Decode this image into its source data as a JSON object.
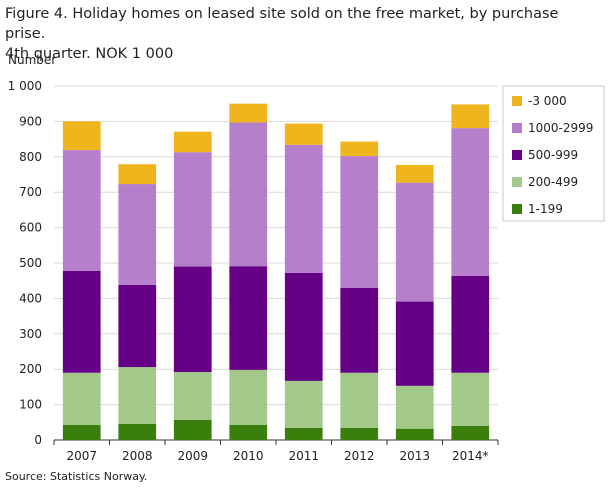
{
  "title_line1": "Figure 4. Holiday homes on leased site sold on the free market, by purchase prise.",
  "title_line2": "4th quarter. NOK 1 000",
  "source": "Source: Statistics Norway.",
  "chart_data": {
    "type": "bar",
    "stacked": true,
    "title": "Figure 4. Holiday homes on leased site sold on the free market, by purchase prise. 4th quarter. NOK 1 000",
    "xlabel": "",
    "ylabel": "Number",
    "ylim": [
      0,
      1000
    ],
    "yticks": [
      0,
      100,
      200,
      300,
      400,
      500,
      600,
      700,
      800,
      900,
      1000
    ],
    "ytick_labels": [
      "0",
      "100",
      "200",
      "300",
      "400",
      "500",
      "600",
      "700",
      "800",
      "900",
      "1 000"
    ],
    "grid": true,
    "legend_position": "top-right",
    "categories": [
      "2007",
      "2008",
      "2009",
      "2010",
      "2011",
      "2012",
      "2013",
      "2014*"
    ],
    "series": [
      {
        "name": "1-199",
        "color": "#3a7f0c",
        "values": [
          43,
          46,
          57,
          43,
          34,
          34,
          32,
          40
        ]
      },
      {
        "name": "200-499",
        "color": "#a2c98a",
        "values": [
          147,
          160,
          135,
          155,
          133,
          156,
          121,
          150
        ]
      },
      {
        "name": "500-999",
        "color": "#660087",
        "values": [
          288,
          232,
          298,
          293,
          305,
          240,
          238,
          274
        ]
      },
      {
        "name": "1000-2999",
        "color": "#b57fcb",
        "values": [
          341,
          285,
          323,
          406,
          362,
          372,
          336,
          417
        ]
      },
      {
        "name": "-3 000",
        "color": "#efb51c",
        "values": [
          81,
          56,
          58,
          53,
          60,
          41,
          50,
          67
        ]
      }
    ]
  }
}
